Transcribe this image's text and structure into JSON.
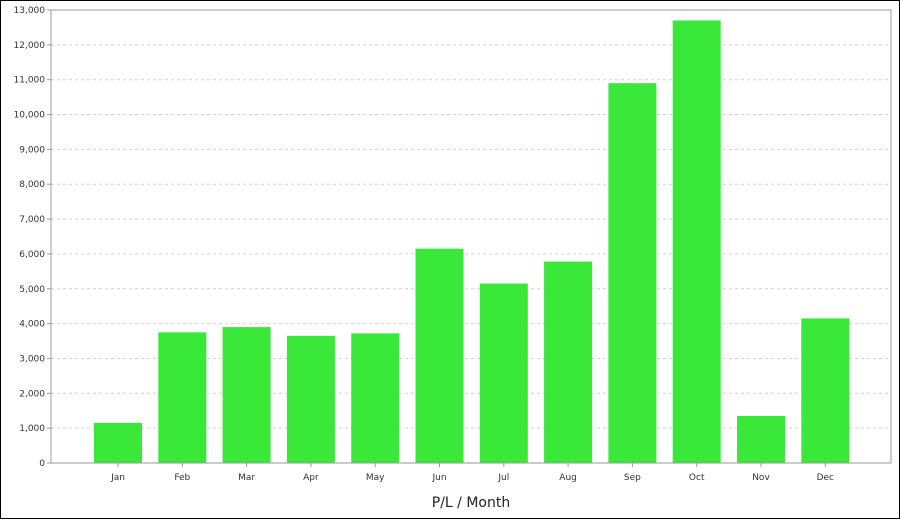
{
  "chart_data": {
    "type": "bar",
    "title": "",
    "xlabel": "P/L / Month",
    "ylabel": "",
    "categories": [
      "Jan",
      "Feb",
      "Mar",
      "Apr",
      "May",
      "Jun",
      "Jul",
      "Aug",
      "Sep",
      "Oct",
      "Nov",
      "Dec"
    ],
    "values": [
      1150,
      3750,
      3900,
      3650,
      3720,
      6150,
      5150,
      5780,
      10900,
      12700,
      1350,
      4150
    ],
    "ylim": [
      0,
      13000
    ],
    "yticks": [
      0,
      1000,
      2000,
      3000,
      4000,
      5000,
      6000,
      7000,
      8000,
      9000,
      10000,
      11000,
      12000,
      13000
    ],
    "ytick_labels": [
      "0",
      "1,000",
      "2,000",
      "3,000",
      "4,000",
      "5,000",
      "6,000",
      "7,000",
      "8,000",
      "9,000",
      "10,000",
      "11,000",
      "12,000",
      "13,000"
    ],
    "grid": true,
    "bar_color": "#3ae83a",
    "grid_color": "#d0d0d0"
  }
}
